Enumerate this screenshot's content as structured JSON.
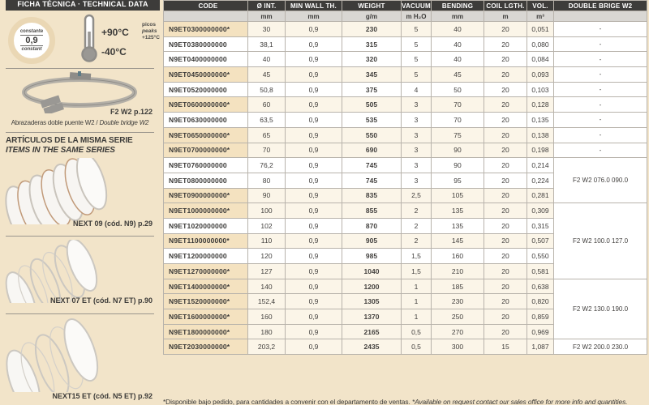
{
  "sidebar": {
    "header": "FICHA TÉCNICA · TECHNICAL DATA",
    "constant_badge": {
      "top": "constante",
      "value": "0,9",
      "bottom": "constant"
    },
    "temperature": {
      "max": "+90°C",
      "min": "-40°C",
      "peaks_es": "picos",
      "peaks_en": "peaks",
      "peaks_value": "+125°C"
    },
    "clamp": {
      "ref": "F2 W2 p.122",
      "caption_es": "Abrazaderas doble puente W2 / ",
      "caption_en": "Double bridge W2"
    },
    "series_title_es": "ARTÍCULOS DE LA MISMA SERIE",
    "series_title_en": "ITEMS IN THE SAME SERIES",
    "items": [
      {
        "label": "NEXT 09 (cód. N9) p.29"
      },
      {
        "label": "NEXT 07 ET (cód. N7 ET) p.90"
      },
      {
        "label": "NEXT15 ET (cód. N5 ET) p.92"
      }
    ]
  },
  "table": {
    "columns": [
      "CODE",
      "Ø INT.",
      "MIN WALL TH.",
      "WEIGHT",
      "VACUUM",
      "BENDING",
      "COIL LGTH.",
      "VOL.",
      "DOUBLE BRIGE W2"
    ],
    "units": [
      "",
      "mm",
      "mm",
      "g/m",
      "m H₂O",
      "mm",
      "m",
      "m³",
      ""
    ],
    "rows": [
      {
        "code": "N9ET0300000000*",
        "starred": true,
        "d_int": "30",
        "wall": "0,9",
        "weight": "230",
        "vacuum": "5",
        "bending": "40",
        "coil": "20",
        "vol": "0,051",
        "bridge": {
          "text": "-",
          "span": 1
        }
      },
      {
        "code": "N9ET0380000000",
        "starred": false,
        "d_int": "38,1",
        "wall": "0,9",
        "weight": "315",
        "vacuum": "5",
        "bending": "40",
        "coil": "20",
        "vol": "0,080",
        "bridge": {
          "text": "-",
          "span": 1
        }
      },
      {
        "code": "N9ET0400000000",
        "starred": false,
        "d_int": "40",
        "wall": "0,9",
        "weight": "320",
        "vacuum": "5",
        "bending": "40",
        "coil": "20",
        "vol": "0,084",
        "bridge": {
          "text": "-",
          "span": 1
        }
      },
      {
        "code": "N9ET0450000000*",
        "starred": true,
        "d_int": "45",
        "wall": "0,9",
        "weight": "345",
        "vacuum": "5",
        "bending": "45",
        "coil": "20",
        "vol": "0,093",
        "bridge": {
          "text": "-",
          "span": 1
        }
      },
      {
        "code": "N9ET0520000000",
        "starred": false,
        "d_int": "50,8",
        "wall": "0,9",
        "weight": "375",
        "vacuum": "4",
        "bending": "50",
        "coil": "20",
        "vol": "0,103",
        "bridge": {
          "text": "-",
          "span": 1
        }
      },
      {
        "code": "N9ET0600000000*",
        "starred": true,
        "d_int": "60",
        "wall": "0,9",
        "weight": "505",
        "vacuum": "3",
        "bending": "70",
        "coil": "20",
        "vol": "0,128",
        "bridge": {
          "text": "-",
          "span": 1
        }
      },
      {
        "code": "N9ET0630000000",
        "starred": false,
        "d_int": "63,5",
        "wall": "0,9",
        "weight": "535",
        "vacuum": "3",
        "bending": "70",
        "coil": "20",
        "vol": "0,135",
        "bridge": {
          "text": "-",
          "span": 1
        }
      },
      {
        "code": "N9ET0650000000*",
        "starred": true,
        "d_int": "65",
        "wall": "0,9",
        "weight": "550",
        "vacuum": "3",
        "bending": "75",
        "coil": "20",
        "vol": "0,138",
        "bridge": {
          "text": "-",
          "span": 1
        }
      },
      {
        "code": "N9ET0700000000*",
        "starred": true,
        "d_int": "70",
        "wall": "0,9",
        "weight": "690",
        "vacuum": "3",
        "bending": "90",
        "coil": "20",
        "vol": "0,198",
        "bridge": {
          "text": "-",
          "span": 1
        }
      },
      {
        "code": "N9ET0760000000",
        "starred": false,
        "d_int": "76,2",
        "wall": "0,9",
        "weight": "745",
        "vacuum": "3",
        "bending": "90",
        "coil": "20",
        "vol": "0,214",
        "bridge": {
          "text": "F2 W2 076.0 090.0",
          "span": 3
        }
      },
      {
        "code": "N9ET0800000000",
        "starred": false,
        "d_int": "80",
        "wall": "0,9",
        "weight": "745",
        "vacuum": "3",
        "bending": "95",
        "coil": "20",
        "vol": "0,224",
        "bridge": null
      },
      {
        "code": "N9ET0900000000*",
        "starred": true,
        "d_int": "90",
        "wall": "0,9",
        "weight": "835",
        "vacuum": "2,5",
        "bending": "105",
        "coil": "20",
        "vol": "0,281",
        "bridge": null
      },
      {
        "code": "N9ET1000000000*",
        "starred": true,
        "d_int": "100",
        "wall": "0,9",
        "weight": "855",
        "vacuum": "2",
        "bending": "135",
        "coil": "20",
        "vol": "0,309",
        "bridge": {
          "text": "F2 W2 100.0 127.0",
          "span": 5
        }
      },
      {
        "code": "N9ET1020000000",
        "starred": false,
        "d_int": "102",
        "wall": "0,9",
        "weight": "870",
        "vacuum": "2",
        "bending": "135",
        "coil": "20",
        "vol": "0,315",
        "bridge": null
      },
      {
        "code": "N9ET1100000000*",
        "starred": true,
        "d_int": "110",
        "wall": "0,9",
        "weight": "905",
        "vacuum": "2",
        "bending": "145",
        "coil": "20",
        "vol": "0,507",
        "bridge": null
      },
      {
        "code": "N9ET1200000000",
        "starred": false,
        "d_int": "120",
        "wall": "0,9",
        "weight": "985",
        "vacuum": "1,5",
        "bending": "160",
        "coil": "20",
        "vol": "0,550",
        "bridge": null
      },
      {
        "code": "N9ET1270000000*",
        "starred": true,
        "d_int": "127",
        "wall": "0,9",
        "weight": "1040",
        "vacuum": "1,5",
        "bending": "210",
        "coil": "20",
        "vol": "0,581",
        "bridge": null
      },
      {
        "code": "N9ET1400000000*",
        "starred": true,
        "d_int": "140",
        "wall": "0,9",
        "weight": "1200",
        "vacuum": "1",
        "bending": "185",
        "coil": "20",
        "vol": "0,638",
        "bridge": {
          "text": "F2 W2 130.0 190.0",
          "span": 4
        }
      },
      {
        "code": "N9ET1520000000*",
        "starred": true,
        "d_int": "152,4",
        "wall": "0,9",
        "weight": "1305",
        "vacuum": "1",
        "bending": "230",
        "coil": "20",
        "vol": "0,820",
        "bridge": null
      },
      {
        "code": "N9ET1600000000*",
        "starred": true,
        "d_int": "160",
        "wall": "0,9",
        "weight": "1370",
        "vacuum": "1",
        "bending": "250",
        "coil": "20",
        "vol": "0,859",
        "bridge": null
      },
      {
        "code": "N9ET1800000000*",
        "starred": true,
        "d_int": "180",
        "wall": "0,9",
        "weight": "2165",
        "vacuum": "0,5",
        "bending": "270",
        "coil": "20",
        "vol": "0,969",
        "bridge": null
      },
      {
        "code": "N9ET2030000000*",
        "starred": true,
        "d_int": "203,2",
        "wall": "0,9",
        "weight": "2435",
        "vacuum": "0,5",
        "bending": "300",
        "coil": "15",
        "vol": "1,087",
        "bridge": {
          "text": "F2 W2 200.0 230.0",
          "span": 1
        }
      }
    ]
  },
  "footnote": {
    "es": "*Disponible bajo pedido, para cantidades a convenir con el departamento de ventas. ",
    "en": "*Available on request contact our sales office for more info and quantities."
  }
}
